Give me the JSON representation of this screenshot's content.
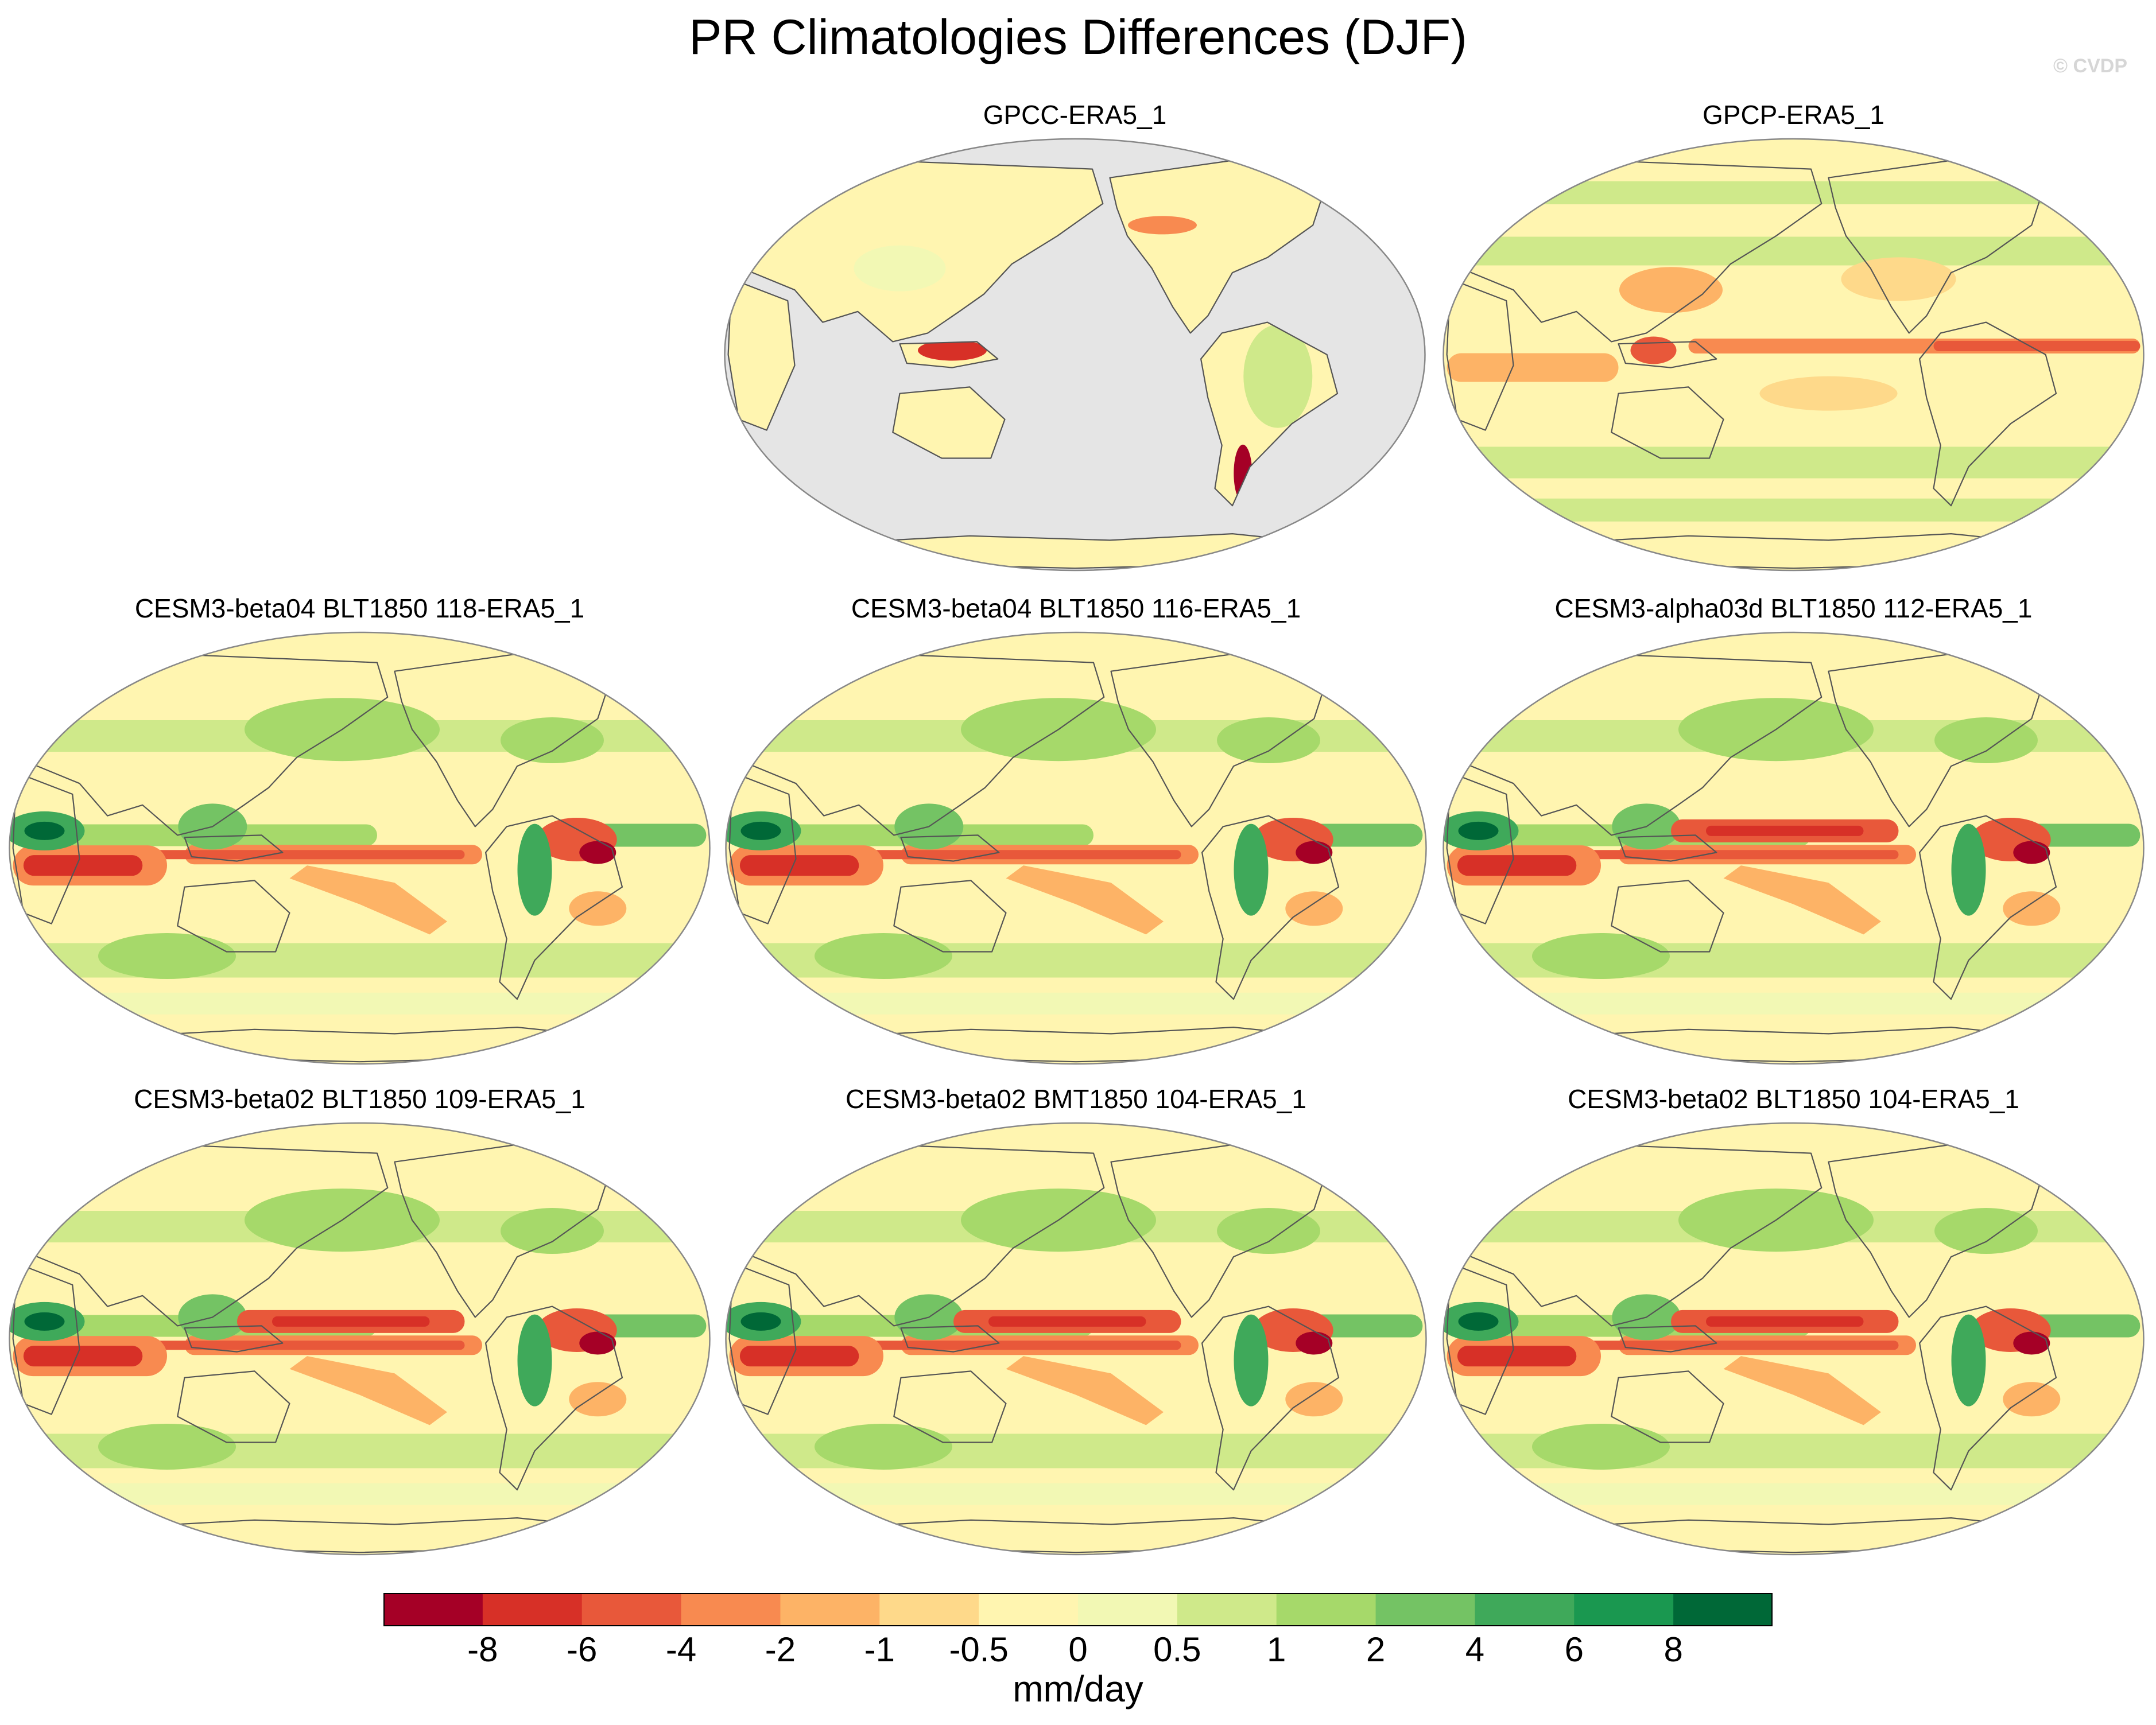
{
  "title": "PR Climatologies Differences (DJF)",
  "watermark": "© CVDP",
  "panels": [
    {
      "title": "GPCC-ERA5_1",
      "land_only": true
    },
    {
      "title": "GPCP-ERA5_1",
      "land_only": false
    },
    {
      "title": "CESM3-beta04 BLT1850 118-ERA5_1",
      "land_only": false
    },
    {
      "title": "CESM3-beta04 BLT1850 116-ERA5_1",
      "land_only": false
    },
    {
      "title": "CESM3-alpha03d BLT1850 112-ERA5_1",
      "land_only": false
    },
    {
      "title": "CESM3-beta02 BLT1850 109-ERA5_1",
      "land_only": false
    },
    {
      "title": "CESM3-beta02 BMT1850 104-ERA5_1",
      "land_only": false
    },
    {
      "title": "CESM3-beta02 BLT1850 104-ERA5_1",
      "land_only": false
    }
  ],
  "colorbar": {
    "unit": "mm/day",
    "tick_labels": [
      "-8",
      "-6",
      "-4",
      "-2",
      "-1",
      "-0.5",
      "0",
      "0.5",
      "1",
      "2",
      "4",
      "6",
      "8"
    ],
    "colors": [
      "#a50026",
      "#d73027",
      "#e8583a",
      "#f88a50",
      "#fdb366",
      "#fed98a",
      "#fff5b0",
      "#f2f8b4",
      "#cfe98a",
      "#a6d96a",
      "#74c364",
      "#3fa95a",
      "#1a9850",
      "#006837"
    ]
  },
  "colors": {
    "missing": "#e5e5e5",
    "coast": "#555555"
  }
}
